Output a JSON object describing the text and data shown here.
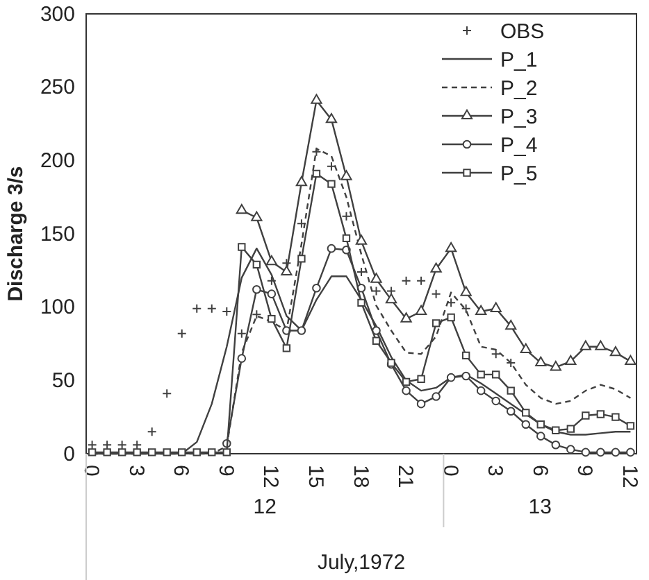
{
  "chart_data": {
    "type": "line",
    "ylabel": "Discharge 3/s",
    "xlabel": "July,1972",
    "annotations": [
      "12",
      "13"
    ],
    "categories": [
      "0",
      null,
      null,
      "3",
      null,
      null,
      "6",
      null,
      null,
      "9",
      null,
      null,
      "12",
      null,
      null,
      "15",
      null,
      null,
      "18",
      null,
      null,
      "21",
      null,
      null,
      "0",
      null,
      null,
      "3",
      null,
      null,
      "6",
      null,
      null,
      "9",
      null,
      null,
      "12"
    ],
    "ylim": [
      0,
      300
    ],
    "yticks": [
      0,
      50,
      100,
      150,
      200,
      250,
      300
    ],
    "grid": false,
    "legend": "top right",
    "series": [
      {
        "name": "OBS",
        "type": "scatter",
        "marker": "cross",
        "color": "#404040",
        "values": [
          6,
          6,
          6,
          6,
          15,
          41,
          82,
          99,
          99,
          97,
          82,
          95,
          118,
          130,
          157,
          206,
          196,
          162,
          124,
          111,
          111,
          118,
          118,
          109,
          103,
          99,
          null,
          68,
          62,
          null,
          null,
          null,
          null,
          null,
          null,
          null,
          null
        ]
      },
      {
        "name": "P_1",
        "marker": "none",
        "line_style": "solid",
        "color": "#404040",
        "values": [
          0,
          0,
          0,
          0,
          0,
          0,
          0,
          8,
          34,
          73,
          120,
          140,
          122,
          94,
          84,
          105,
          121,
          121,
          105,
          87,
          66,
          50,
          43,
          45,
          52,
          54,
          48,
          41,
          34,
          27,
          20,
          15,
          13,
          13,
          14,
          15,
          15
        ]
      },
      {
        "name": "P_2",
        "marker": "none",
        "line_style": "dashed",
        "color": "#404040",
        "values": [
          0,
          0,
          0,
          0,
          0,
          0,
          0,
          0,
          0,
          5,
          69,
          94,
          90,
          84,
          143,
          208,
          203,
          175,
          136,
          101,
          84,
          69,
          68,
          80,
          110,
          98,
          73,
          71,
          62,
          47,
          38,
          34,
          36,
          43,
          47,
          44,
          38
        ]
      },
      {
        "name": "P_3",
        "marker": "triangle",
        "line_style": "solid",
        "color": "#404040",
        "values": [
          null,
          null,
          null,
          null,
          null,
          null,
          null,
          null,
          null,
          null,
          166,
          161,
          131,
          124,
          185,
          241,
          228,
          189,
          145,
          119,
          105,
          92,
          97,
          126,
          140,
          110,
          97,
          99,
          87,
          71,
          62,
          59,
          63,
          73,
          73,
          69,
          63
        ]
      },
      {
        "name": "P_4",
        "marker": "circle",
        "line_style": "solid",
        "color": "#404040",
        "values": [
          null,
          null,
          null,
          null,
          null,
          null,
          null,
          null,
          null,
          7,
          65,
          112,
          109,
          84,
          84,
          113,
          140,
          139,
          113,
          84,
          61,
          43,
          34,
          39,
          52,
          53,
          43,
          36,
          29,
          20,
          12,
          6,
          3,
          1,
          1,
          1,
          1
        ]
      },
      {
        "name": "P_5",
        "marker": "square",
        "line_style": "solid",
        "color": "#404040",
        "values": [
          1,
          1,
          1,
          1,
          1,
          1,
          1,
          1,
          1,
          1,
          141,
          129,
          92,
          72,
          133,
          191,
          184,
          147,
          103,
          77,
          62,
          49,
          51,
          89,
          93,
          67,
          54,
          54,
          43,
          28,
          20,
          16,
          17,
          26,
          27,
          25,
          19
        ]
      }
    ]
  }
}
